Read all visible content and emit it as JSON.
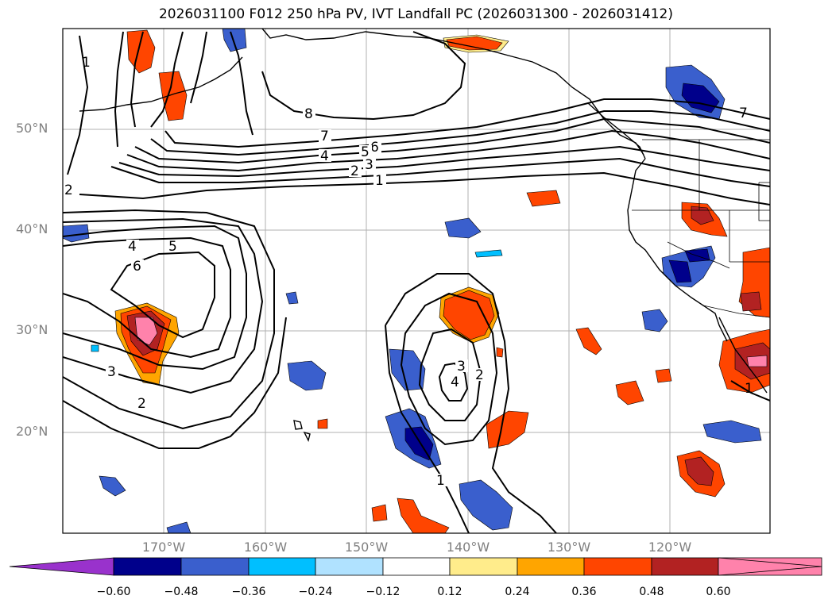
{
  "title": "2026031100 F012 250 hPa PV, IVT Landfall PC (2026031300 - 2026031412)",
  "lat_labels": [
    "50°N",
    "40°N",
    "30°N",
    "20°N"
  ],
  "lon_labels": [
    "170°W",
    "160°W",
    "150°W",
    "140°W",
    "130°W",
    "120°W"
  ],
  "colorbar": {
    "ticks": [
      "−0.60",
      "−0.48",
      "−0.36",
      "−0.24",
      "−0.12",
      "0.12",
      "0.24",
      "0.36",
      "0.48",
      "0.60"
    ],
    "colors": [
      "#9932cc",
      "#00008b",
      "#3a5fcd",
      "#00bfff",
      "#b0e2ff",
      "#ffffff",
      "#ffec8b",
      "#ffa500",
      "#ff4500",
      "#b22222",
      "#ff82ab"
    ]
  },
  "contour_labels": [
    "1",
    "2",
    "3",
    "4",
    "5",
    "6",
    "7",
    "8"
  ]
}
